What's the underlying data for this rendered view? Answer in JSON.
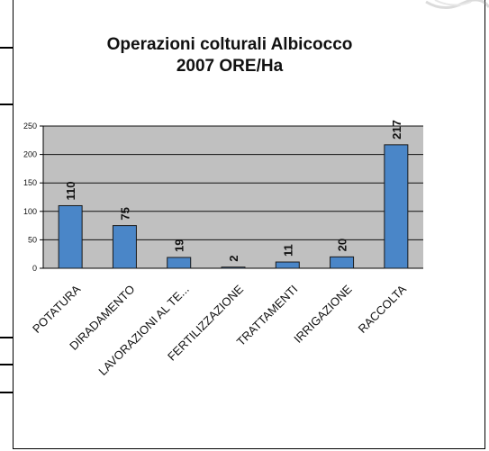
{
  "chart_data": {
    "type": "bar",
    "title": [
      "Operazioni colturali Albicocco",
      "2007 ORE/Ha"
    ],
    "categories": [
      "POTATURA",
      "DIRADAMENTO",
      "LAVORAZIONI AL TE...",
      "FERTILIZZAZIONE",
      "TRATTAMENTI",
      "IRRIGAZIONE",
      "RACCOLTA"
    ],
    "values": [
      110,
      75,
      19,
      2,
      11,
      20,
      217
    ],
    "ylim": [
      0,
      250
    ],
    "yticks": [
      0,
      50,
      100,
      150,
      200,
      250
    ],
    "xlabel": "",
    "ylabel": "",
    "grid": true,
    "legend": "none",
    "colors": {
      "bar": "#4a86c8",
      "bar_edge": "#1a1a1a",
      "plot_bg": "#c0c0c0",
      "grid": "#111111"
    }
  }
}
